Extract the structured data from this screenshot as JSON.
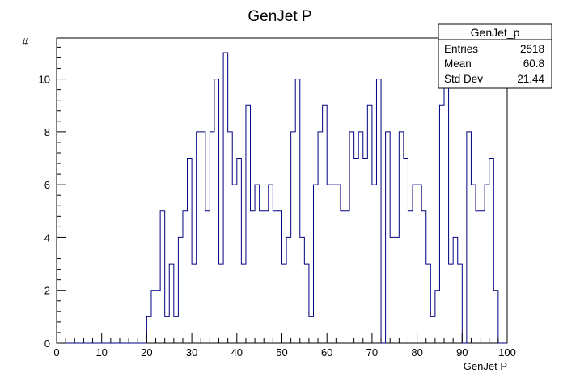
{
  "chart_data": {
    "type": "histogram",
    "title": "GenJet P",
    "xlabel": "GenJet P",
    "ylabel": "#",
    "xlim": [
      0,
      100
    ],
    "ylim": [
      0,
      11.55
    ],
    "xticks": [
      "0",
      "10",
      "20",
      "30",
      "40",
      "50",
      "60",
      "70",
      "80",
      "90",
      "100"
    ],
    "yticks": [
      "0",
      "2",
      "4",
      "6",
      "8",
      "10"
    ],
    "grid": false,
    "line_color": "#000080",
    "bin_width": 1,
    "values": [
      0,
      0,
      0,
      0,
      0,
      0,
      0,
      0,
      0,
      0,
      0,
      0,
      0,
      0,
      0,
      0,
      0,
      0,
      0,
      0,
      1,
      2,
      2,
      5,
      1,
      3,
      1,
      4,
      5,
      7,
      3,
      8,
      8,
      5,
      8,
      10,
      3,
      11,
      8,
      6,
      7,
      3,
      9,
      5,
      6,
      5,
      5,
      6,
      5,
      5,
      3,
      4,
      8,
      10,
      4,
      3,
      1,
      6,
      8,
      9,
      6,
      6,
      6,
      5,
      5,
      8,
      7,
      8,
      7,
      9,
      6,
      10,
      0,
      8,
      4,
      4,
      8,
      7,
      5,
      6,
      6,
      5,
      3,
      1,
      2,
      9,
      10,
      3,
      4,
      3,
      0,
      8,
      6,
      5,
      5,
      6,
      7,
      2,
      0,
      0
    ],
    "stats": {
      "name": "GenJet_p",
      "rows": [
        {
          "label": "Entries",
          "value": "2518"
        },
        {
          "label": "Mean",
          "value": "60.8"
        },
        {
          "label": "Std Dev",
          "value": "21.44"
        }
      ]
    }
  }
}
